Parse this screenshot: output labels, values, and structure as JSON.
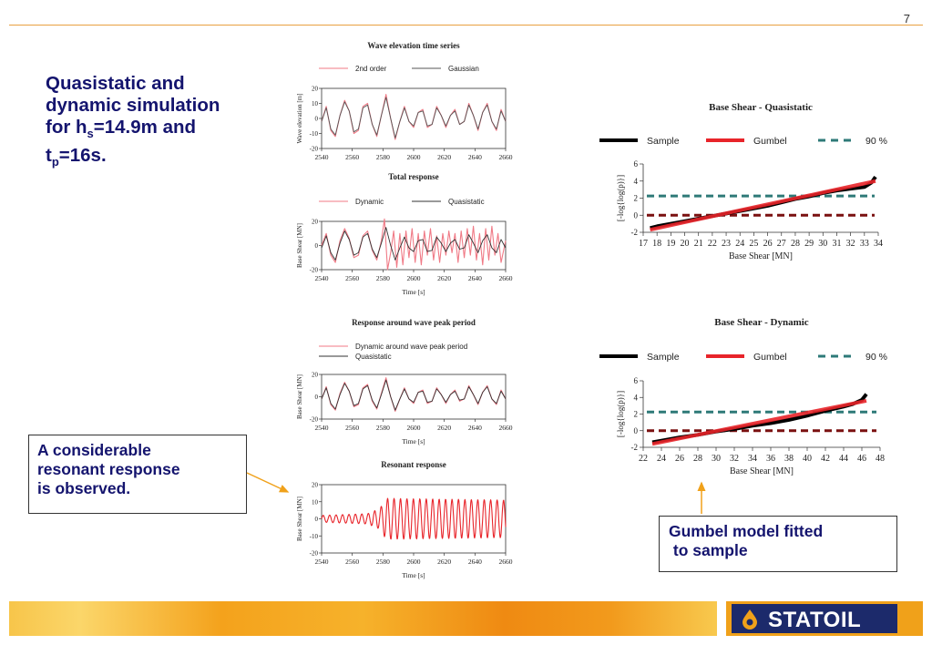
{
  "page_number": "7",
  "title": {
    "line1": "Quasistatic and",
    "line2": "dynamic simulation",
    "line3_prefix": "for h",
    "line3_sub": "s",
    "line3_suffix": "=14.9m and",
    "line4_prefix": "t",
    "line4_sub": "p",
    "line4_suffix": "=16s."
  },
  "callouts": {
    "resonant": [
      "A considerable",
      "resonant response",
      "is observed."
    ],
    "gumbel": [
      "Gumbel model fitted",
      " to sample"
    ]
  },
  "logo": {
    "text": "STATOIL"
  },
  "colors": {
    "title": "#14146e",
    "accent": "#e8a040",
    "red": "#e8242a",
    "teal": "#2e7a78",
    "darkred": "#7a1010",
    "logo_bg": "#1c2a6b"
  },
  "chart_data": [
    {
      "id": "wave",
      "type": "line",
      "title": "Wave elevation time series",
      "xlabel": "",
      "ylabel": "Wave elevation [m]",
      "xlim": [
        2540,
        2660
      ],
      "ylim": [
        -20,
        20
      ],
      "xticks": [
        2540,
        2560,
        2580,
        2600,
        2620,
        2640,
        2660
      ],
      "yticks": [
        20,
        10,
        0,
        -10,
        -20
      ],
      "legend": [
        "2nd order",
        "Gaussian"
      ],
      "series": [
        {
          "name": "2nd order",
          "color": "#f07a86",
          "x": [
            2540,
            2543,
            2546,
            2549,
            2552,
            2555,
            2558,
            2561,
            2564,
            2567,
            2570,
            2573,
            2576,
            2579,
            2582,
            2585,
            2588,
            2591,
            2594,
            2597,
            2600,
            2603,
            2606,
            2609,
            2612,
            2615,
            2618,
            2621,
            2624,
            2627,
            2630,
            2633,
            2636,
            2639,
            2642,
            2645,
            2648,
            2651,
            2654,
            2657,
            2660
          ],
          "y": [
            -2,
            8,
            -8,
            -12,
            2,
            12,
            5,
            -10,
            -8,
            8,
            10,
            -4,
            -12,
            2,
            16,
            0,
            -14,
            -2,
            8,
            -2,
            -6,
            4,
            6,
            -6,
            -4,
            8,
            2,
            -6,
            2,
            6,
            -4,
            -2,
            10,
            2,
            -8,
            4,
            10,
            -2,
            -8,
            6,
            -2
          ]
        },
        {
          "name": "Gaussian",
          "color": "#555555",
          "x": [
            2540,
            2543,
            2546,
            2549,
            2552,
            2555,
            2558,
            2561,
            2564,
            2567,
            2570,
            2573,
            2576,
            2579,
            2582,
            2585,
            2588,
            2591,
            2594,
            2597,
            2600,
            2603,
            2606,
            2609,
            2612,
            2615,
            2618,
            2621,
            2624,
            2627,
            2630,
            2633,
            2636,
            2639,
            2642,
            2645,
            2648,
            2651,
            2654,
            2657,
            2660
          ],
          "y": [
            -2,
            7,
            -7,
            -11,
            2,
            11,
            5,
            -9,
            -7,
            7,
            9,
            -4,
            -11,
            2,
            14,
            0,
            -13,
            -2,
            7,
            -2,
            -5,
            4,
            5,
            -5,
            -4,
            7,
            2,
            -5,
            2,
            5,
            -4,
            -2,
            9,
            2,
            -7,
            4,
            9,
            -2,
            -7,
            5,
            -2
          ]
        }
      ]
    },
    {
      "id": "total",
      "type": "line",
      "title": "Total response",
      "xlabel": "Time [s]",
      "ylabel": "Base Shear [MN]",
      "xlim": [
        2540,
        2660
      ],
      "ylim": [
        -20,
        20
      ],
      "xticks": [
        2540,
        2560,
        2580,
        2600,
        2620,
        2640,
        2660
      ],
      "yticks": [
        20,
        0,
        -20
      ],
      "legend": [
        "Dynamic",
        "Quasistatic"
      ],
      "series": [
        {
          "name": "Dynamic",
          "color": "#f07a86",
          "x": [
            2540,
            2543,
            2546,
            2549,
            2552,
            2555,
            2558,
            2561,
            2564,
            2567,
            2570,
            2573,
            2576,
            2579,
            2581,
            2583,
            2585,
            2587,
            2589,
            2591,
            2593,
            2595,
            2597,
            2599,
            2601,
            2603,
            2605,
            2607,
            2609,
            2611,
            2613,
            2615,
            2617,
            2619,
            2621,
            2623,
            2625,
            2627,
            2629,
            2631,
            2633,
            2635,
            2637,
            2639,
            2641,
            2643,
            2645,
            2647,
            2649,
            2651,
            2653,
            2655,
            2657,
            2660
          ],
          "y": [
            0,
            10,
            -8,
            -14,
            4,
            14,
            6,
            -10,
            -8,
            8,
            12,
            -4,
            -12,
            4,
            22,
            -20,
            -6,
            12,
            -18,
            10,
            -16,
            12,
            -10,
            14,
            -14,
            10,
            -16,
            12,
            -8,
            14,
            -12,
            8,
            -14,
            10,
            -8,
            12,
            -6,
            10,
            -14,
            12,
            -10,
            14,
            -8,
            16,
            -12,
            10,
            -16,
            14,
            -12,
            16,
            -8,
            10,
            -14,
            4
          ]
        },
        {
          "name": "Quasistatic",
          "color": "#333333",
          "x": [
            2540,
            2543,
            2546,
            2549,
            2552,
            2555,
            2558,
            2561,
            2564,
            2567,
            2570,
            2573,
            2576,
            2579,
            2582,
            2585,
            2588,
            2591,
            2594,
            2597,
            2600,
            2603,
            2606,
            2609,
            2612,
            2615,
            2618,
            2621,
            2624,
            2627,
            2630,
            2633,
            2636,
            2639,
            2642,
            2645,
            2648,
            2651,
            2654,
            2657,
            2660
          ],
          "y": [
            -2,
            8,
            -6,
            -12,
            2,
            12,
            5,
            -8,
            -6,
            7,
            10,
            -3,
            -10,
            2,
            15,
            0,
            -12,
            -2,
            7,
            -2,
            -5,
            4,
            5,
            -5,
            -4,
            7,
            2,
            -5,
            2,
            5,
            -3,
            -2,
            9,
            2,
            -6,
            4,
            9,
            -2,
            -6,
            5,
            -2
          ]
        }
      ]
    },
    {
      "id": "peak",
      "type": "line",
      "title": "Response around wave peak period",
      "xlabel": "Time [s]",
      "ylabel": "Base Shear [MN]",
      "xlim": [
        2540,
        2660
      ],
      "ylim": [
        -20,
        20
      ],
      "xticks": [
        2540,
        2560,
        2580,
        2600,
        2620,
        2640,
        2660
      ],
      "yticks": [
        20,
        0,
        -20
      ],
      "legend": [
        "Dynamic around wave peak period",
        "Quasistatic"
      ],
      "series": [
        {
          "name": "Dynamic around wave peak period",
          "color": "#f07a86",
          "x": [
            2540,
            2543,
            2546,
            2549,
            2552,
            2555,
            2558,
            2561,
            2564,
            2567,
            2570,
            2573,
            2576,
            2579,
            2582,
            2585,
            2588,
            2591,
            2594,
            2597,
            2600,
            2603,
            2606,
            2609,
            2612,
            2615,
            2618,
            2621,
            2624,
            2627,
            2630,
            2633,
            2636,
            2639,
            2642,
            2645,
            2648,
            2651,
            2654,
            2657,
            2660
          ],
          "y": [
            -2,
            9,
            -7,
            -12,
            3,
            13,
            5,
            -9,
            -7,
            8,
            11,
            -4,
            -11,
            3,
            17,
            0,
            -13,
            -2,
            8,
            -2,
            -6,
            4,
            6,
            -6,
            -4,
            8,
            2,
            -6,
            2,
            6,
            -4,
            -2,
            10,
            2,
            -7,
            4,
            10,
            -2,
            -7,
            6,
            -2
          ]
        },
        {
          "name": "Quasistatic",
          "color": "#333333",
          "x": [
            2540,
            2543,
            2546,
            2549,
            2552,
            2555,
            2558,
            2561,
            2564,
            2567,
            2570,
            2573,
            2576,
            2579,
            2582,
            2585,
            2588,
            2591,
            2594,
            2597,
            2600,
            2603,
            2606,
            2609,
            2612,
            2615,
            2618,
            2621,
            2624,
            2627,
            2630,
            2633,
            2636,
            2639,
            2642,
            2645,
            2648,
            2651,
            2654,
            2657,
            2660
          ],
          "y": [
            -2,
            8,
            -6,
            -11,
            2,
            12,
            5,
            -8,
            -6,
            7,
            10,
            -3,
            -10,
            2,
            15,
            0,
            -12,
            -2,
            7,
            -2,
            -5,
            4,
            5,
            -5,
            -4,
            7,
            2,
            -5,
            2,
            5,
            -3,
            -2,
            9,
            2,
            -6,
            4,
            9,
            -2,
            -6,
            5,
            -2
          ]
        }
      ]
    },
    {
      "id": "resonant",
      "type": "line",
      "title": "Resonant response",
      "xlabel": "Time [s]",
      "ylabel": "Base Shear [MN]",
      "xlim": [
        2540,
        2660
      ],
      "ylim": [
        -20,
        20
      ],
      "xticks": [
        2540,
        2560,
        2580,
        2600,
        2620,
        2640,
        2660
      ],
      "yticks": [
        20,
        10,
        0,
        -10,
        -20
      ],
      "series": [
        {
          "name": "",
          "color": "#e8242a",
          "envelope": [
            [
              2540,
              2
            ],
            [
              2570,
              3
            ],
            [
              2578,
              6
            ],
            [
              2582,
              12
            ],
            [
              2660,
              11
            ]
          ],
          "period": 4.2
        }
      ]
    },
    {
      "id": "gumbel_quasi",
      "type": "scatter",
      "title": "Base Shear - Quasistatic",
      "xlabel": "Base Shear [MN]",
      "ylabel": "[-log{log(p)}]",
      "xlim": [
        17,
        34
      ],
      "ylim": [
        -2,
        6
      ],
      "xticks": [
        17,
        18,
        19,
        20,
        21,
        22,
        23,
        24,
        25,
        26,
        27,
        28,
        29,
        30,
        31,
        32,
        33,
        34
      ],
      "yticks": [
        6,
        4,
        2,
        0,
        -2
      ],
      "legend": [
        "Sample",
        "Gumbel",
        "90 %"
      ],
      "series": [
        {
          "name": "Sample",
          "color": "#000000",
          "x": [
            17.5,
            18,
            19,
            20,
            21,
            22,
            23,
            24,
            25,
            26,
            27,
            28,
            29,
            30,
            31,
            32,
            33,
            33.5,
            33.8
          ],
          "y": [
            -1.5,
            -1.3,
            -1.0,
            -0.7,
            -0.4,
            -0.1,
            0.2,
            0.5,
            0.8,
            1.1,
            1.5,
            1.9,
            2.2,
            2.6,
            2.9,
            3.1,
            3.3,
            3.8,
            4.5
          ]
        },
        {
          "name": "Gumbel",
          "color": "#e8242a",
          "x": [
            17.5,
            33.8
          ],
          "y": [
            -1.7,
            4.0
          ]
        },
        {
          "name": "90 %",
          "color": "#2e7a78",
          "y_const": 2.25
        },
        {
          "name": "",
          "color": "#7a1010",
          "y_const": 0
        }
      ]
    },
    {
      "id": "gumbel_dyn",
      "type": "scatter",
      "title": "Base Shear - Dynamic",
      "xlabel": "Base Shear [MN]",
      "ylabel": "[-log{log(p)}]",
      "xlim": [
        22,
        48
      ],
      "ylim": [
        -2,
        6
      ],
      "xticks": [
        22,
        24,
        26,
        28,
        30,
        32,
        34,
        36,
        38,
        40,
        42,
        44,
        46,
        48
      ],
      "yticks": [
        6,
        4,
        2,
        0,
        -2
      ],
      "legend": [
        "Sample",
        "Gumbel",
        "90 %"
      ],
      "series": [
        {
          "name": "Sample",
          "color": "#000000",
          "x": [
            23,
            24,
            26,
            28,
            30,
            32,
            34,
            36,
            38,
            40,
            42,
            44,
            45,
            46,
            46.5
          ],
          "y": [
            -1.4,
            -1.2,
            -0.8,
            -0.5,
            -0.1,
            0.2,
            0.6,
            0.9,
            1.3,
            1.8,
            2.4,
            2.9,
            3.2,
            3.7,
            4.4
          ]
        },
        {
          "name": "Gumbel",
          "color": "#e8242a",
          "x": [
            23,
            46.5
          ],
          "y": [
            -1.6,
            3.6
          ]
        },
        {
          "name": "90 %",
          "color": "#2e7a78",
          "y_const": 2.25
        },
        {
          "name": "",
          "color": "#7a1010",
          "y_const": 0
        }
      ]
    }
  ]
}
